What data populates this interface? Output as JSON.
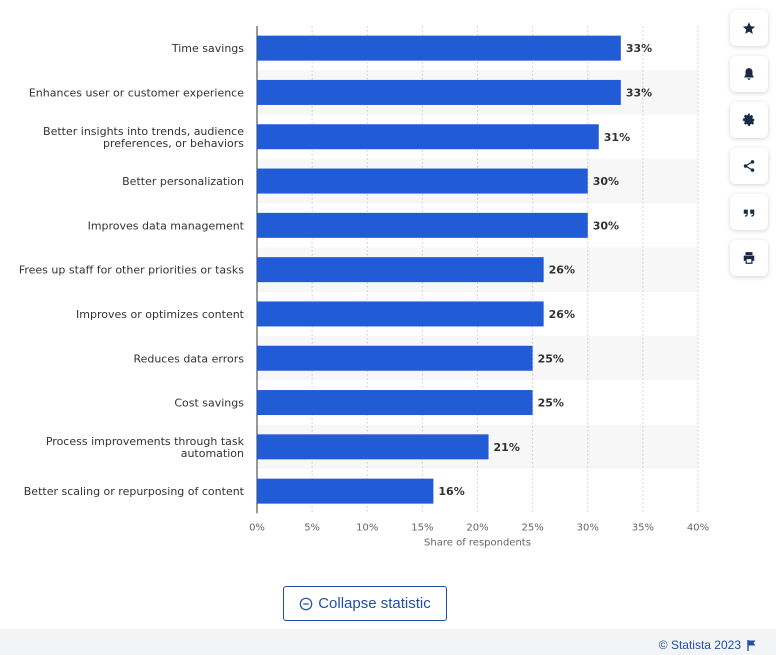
{
  "chart_data": {
    "type": "bar",
    "orientation": "horizontal",
    "categories": [
      "Time savings",
      "Enhances user or customer experience",
      "Better insights into trends, audience preferences, or behaviors",
      "Better personalization",
      "Improves data management",
      "Frees up staff for other priorities or tasks",
      "Improves or optimizes content",
      "Reduces data errors",
      "Cost savings",
      "Process improvements through task automation",
      "Better scaling or repurposing of content"
    ],
    "category_lines": [
      [
        "Time savings"
      ],
      [
        "Enhances user or customer experience"
      ],
      [
        "Better insights into trends, audience",
        "preferences, or behaviors"
      ],
      [
        "Better personalization"
      ],
      [
        "Improves data management"
      ],
      [
        "Frees up staff for other priorities or tasks"
      ],
      [
        "Improves or optimizes content"
      ],
      [
        "Reduces data errors"
      ],
      [
        "Cost savings"
      ],
      [
        "Process improvements through task",
        "automation"
      ],
      [
        "Better scaling or repurposing of content"
      ]
    ],
    "values": [
      33,
      33,
      31,
      30,
      30,
      26,
      26,
      25,
      25,
      21,
      16
    ],
    "value_labels": [
      "33%",
      "33%",
      "31%",
      "30%",
      "30%",
      "26%",
      "26%",
      "25%",
      "25%",
      "21%",
      "16%"
    ],
    "xlabel": "Share of respondents",
    "xlim": [
      0,
      40
    ],
    "xticks": [
      0,
      5,
      10,
      15,
      20,
      25,
      30,
      35,
      40
    ],
    "xtick_labels": [
      "0%",
      "5%",
      "10%",
      "15%",
      "20%",
      "25%",
      "30%",
      "35%",
      "40%"
    ],
    "bar_color": "#225bd6",
    "grid": true,
    "alternating_row_shading": true
  },
  "toolbar": {
    "icons": [
      "star-icon",
      "bell-icon",
      "gear-icon",
      "share-icon",
      "quote-icon",
      "print-icon"
    ]
  },
  "collapse_button": {
    "label": "Collapse statistic",
    "icon": "minus-circle-icon"
  },
  "footer": {
    "credit": "© Statista 2023",
    "icon": "flag-icon"
  },
  "colors": {
    "accent": "#1f4fa6",
    "bar": "#225bd6",
    "row_shade": "#f7f7f8"
  }
}
